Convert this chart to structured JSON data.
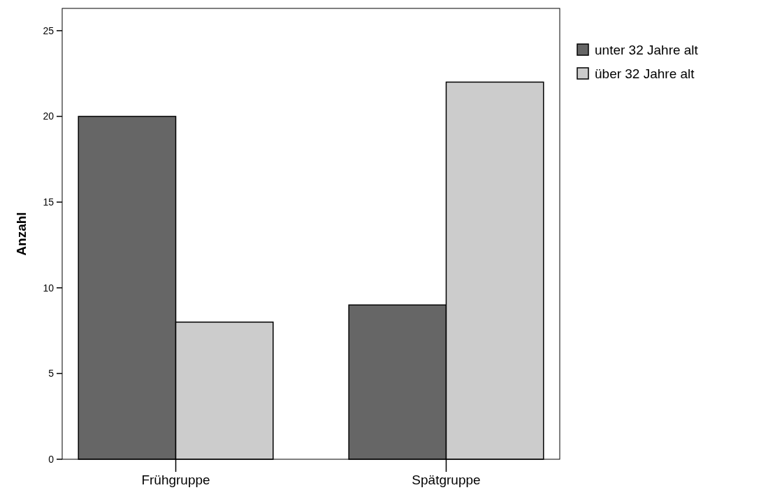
{
  "chart_data": {
    "type": "bar",
    "ylabel": "Anzahl",
    "categories": [
      "Frühgruppe",
      "Spätgruppe"
    ],
    "series": [
      {
        "name": "unter 32 Jahre alt",
        "color": "#666666",
        "values": [
          20,
          9
        ]
      },
      {
        "name": "über 32 Jahre alt",
        "color": "#cccccc",
        "values": [
          8,
          22
        ]
      }
    ],
    "ylim": [
      0,
      26.3
    ],
    "yticks": [
      0,
      5,
      10,
      15,
      20,
      25
    ],
    "grid": false,
    "legend": "top right"
  }
}
